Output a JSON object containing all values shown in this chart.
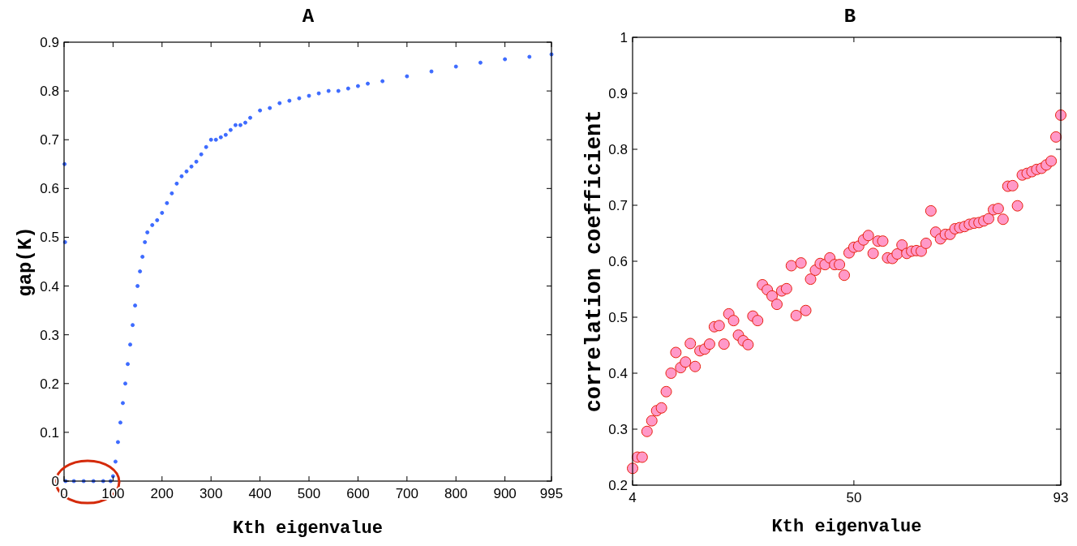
{
  "chart_data": [
    {
      "type": "scatter",
      "title": "A",
      "xlabel": "Kth eigenvalue",
      "ylabel": "gap(K)",
      "marker": "circle",
      "color": "#3d6bff",
      "x": [
        1,
        2,
        3,
        20,
        40,
        60,
        80,
        95,
        100,
        105,
        110,
        115,
        120,
        125,
        130,
        135,
        140,
        145,
        150,
        155,
        160,
        165,
        170,
        180,
        190,
        200,
        210,
        220,
        230,
        240,
        250,
        260,
        270,
        280,
        290,
        300,
        310,
        320,
        330,
        340,
        350,
        360,
        370,
        380,
        400,
        420,
        440,
        460,
        480,
        500,
        520,
        540,
        560,
        580,
        600,
        620,
        650,
        700,
        750,
        800,
        850,
        900,
        950,
        995
      ],
      "values": [
        0.65,
        0.49,
        0,
        0,
        0,
        0,
        0,
        0,
        0.01,
        0.04,
        0.08,
        0.12,
        0.16,
        0.2,
        0.24,
        0.28,
        0.32,
        0.36,
        0.4,
        0.43,
        0.46,
        0.49,
        0.51,
        0.525,
        0.535,
        0.55,
        0.57,
        0.59,
        0.61,
        0.625,
        0.635,
        0.645,
        0.655,
        0.67,
        0.685,
        0.7,
        0.7,
        0.705,
        0.71,
        0.72,
        0.73,
        0.73,
        0.735,
        0.745,
        0.76,
        0.765,
        0.775,
        0.78,
        0.785,
        0.79,
        0.795,
        0.8,
        0.8,
        0.805,
        0.81,
        0.815,
        0.82,
        0.83,
        0.84,
        0.85,
        0.858,
        0.865,
        0.87,
        0.875
      ],
      "xlim": [
        0,
        995
      ],
      "ylim": [
        0,
        0.9
      ],
      "xticks": [
        0,
        100,
        200,
        300,
        400,
        500,
        600,
        700,
        800,
        900,
        995
      ],
      "yticks": [
        0,
        0.1,
        0.2,
        0.3,
        0.4,
        0.5,
        0.6,
        0.7,
        0.8,
        0.9
      ]
    },
    {
      "type": "scatter",
      "title": "B",
      "xlabel": "Kth eigenvalue",
      "ylabel": "correlation coefficient",
      "marker": "circle",
      "color": "#ff99c8",
      "x": [
        4,
        5,
        6,
        7,
        8,
        9,
        10,
        11,
        12,
        13,
        14,
        15,
        16,
        17,
        18,
        19,
        20,
        21,
        22,
        23,
        24,
        25,
        26,
        27,
        28,
        29,
        30,
        31,
        32,
        33,
        34,
        35,
        36,
        37,
        38,
        39,
        40,
        41,
        42,
        43,
        44,
        45,
        46,
        47,
        48,
        49,
        50,
        51,
        52,
        53,
        54,
        55,
        56,
        57,
        58,
        59,
        60,
        61,
        62,
        63,
        64,
        65,
        66,
        67,
        68,
        69,
        70,
        71,
        72,
        73,
        74,
        75,
        76,
        77,
        78,
        79,
        80,
        81,
        82,
        83,
        84,
        85,
        86,
        87,
        88,
        89,
        90,
        91,
        92,
        93
      ],
      "values": [
        0.23,
        0.25,
        0.25,
        0.296,
        0.315,
        0.333,
        0.338,
        0.367,
        0.4,
        0.437,
        0.41,
        0.42,
        0.453,
        0.412,
        0.44,
        0.443,
        0.452,
        0.483,
        0.485,
        0.452,
        0.506,
        0.494,
        0.468,
        0.458,
        0.451,
        0.502,
        0.494,
        0.558,
        0.549,
        0.538,
        0.523,
        0.547,
        0.551,
        0.592,
        0.503,
        0.597,
        0.512,
        0.568,
        0.584,
        0.596,
        0.594,
        0.606,
        0.594,
        0.594,
        0.575,
        0.615,
        0.625,
        0.627,
        0.638,
        0.646,
        0.614,
        0.636,
        0.636,
        0.606,
        0.605,
        0.613,
        0.629,
        0.614,
        0.618,
        0.619,
        0.618,
        0.632,
        0.69,
        0.652,
        0.64,
        0.648,
        0.648,
        0.658,
        0.66,
        0.662,
        0.666,
        0.668,
        0.669,
        0.672,
        0.676,
        0.692,
        0.694,
        0.675,
        0.734,
        0.735,
        0.699,
        0.754,
        0.757,
        0.76,
        0.764,
        0.766,
        0.772,
        0.779,
        0.822,
        0.861
      ],
      "xlim": [
        4,
        93
      ],
      "ylim": [
        0.2,
        1
      ],
      "xticks": [
        4,
        50,
        93
      ],
      "yticks": [
        0.2,
        0.3,
        0.4,
        0.5,
        0.6,
        0.7,
        0.8,
        0.9,
        1
      ]
    }
  ]
}
